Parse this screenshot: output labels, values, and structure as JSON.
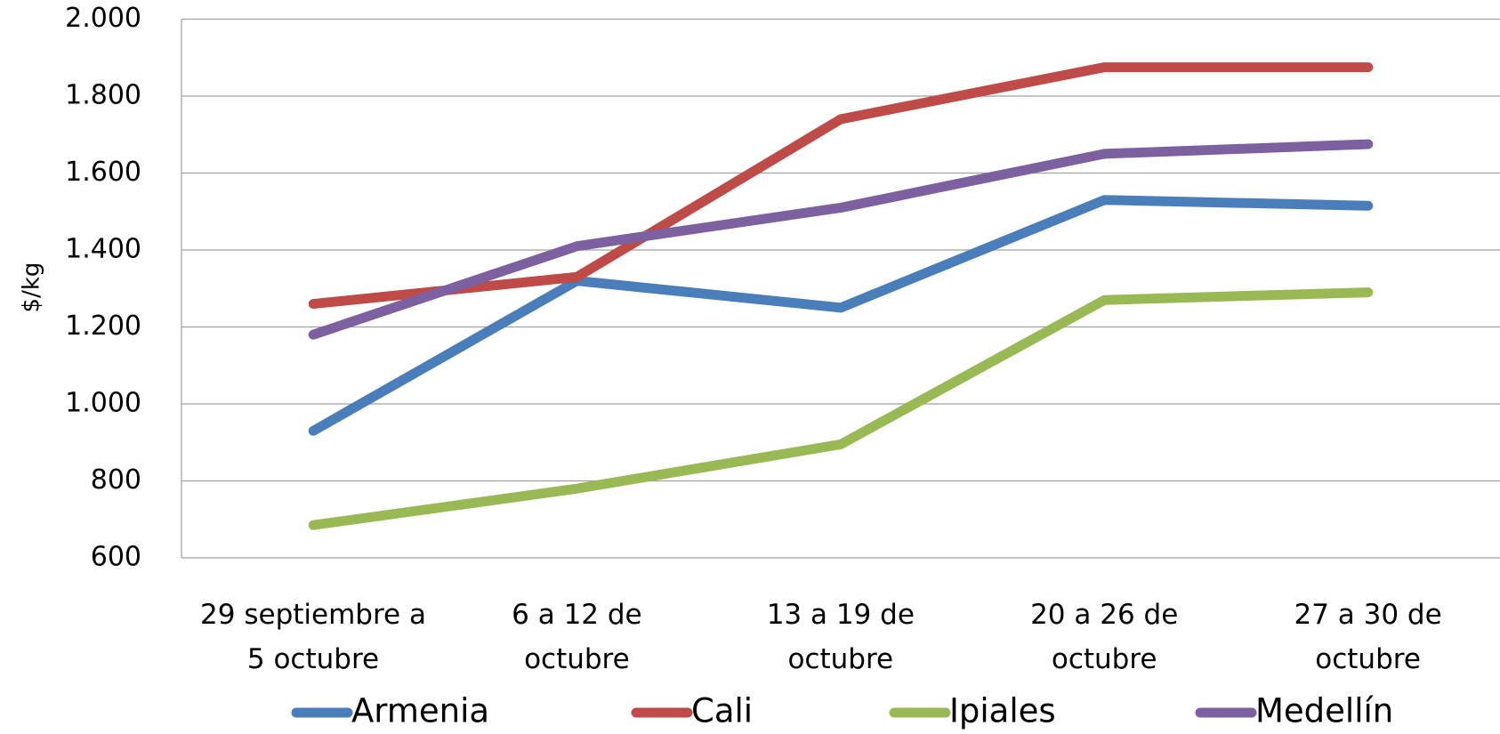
{
  "chart_data": {
    "type": "line",
    "y_label": "$/kg",
    "categories": [
      "29 septiembre a\n5 octubre",
      "6 a 12 de\noctubre",
      "13 a 19 de\noctubre",
      "20 a 26 de\noctubre",
      "27 a 30 de\noctubre"
    ],
    "series": [
      {
        "name": "Armenia",
        "color": "#4a7ebb",
        "values": [
          930,
          1320,
          1250,
          1530,
          1515
        ]
      },
      {
        "name": "Cali",
        "color": "#be4b48",
        "values": [
          1260,
          1330,
          1740,
          1875,
          1875
        ]
      },
      {
        "name": "Ipiales",
        "color": "#98b954",
        "values": [
          685,
          780,
          895,
          1270,
          1290
        ]
      },
      {
        "name": "Medellín",
        "color": "#7d60a0",
        "values": [
          1180,
          1410,
          1510,
          1650,
          1675
        ]
      }
    ],
    "ylim": [
      600,
      2000
    ],
    "yticks": [
      600,
      800,
      {
        "value": 1000,
        "label": "1.000"
      },
      {
        "value": 1200,
        "label": "1.200"
      },
      {
        "value": 1400,
        "label": "1.400"
      },
      {
        "value": 1600,
        "label": "1.600"
      },
      {
        "value": 1800,
        "label": "1.800"
      },
      {
        "value": 2000,
        "label": "2.000"
      }
    ],
    "grid": true,
    "legend": "bottom"
  }
}
